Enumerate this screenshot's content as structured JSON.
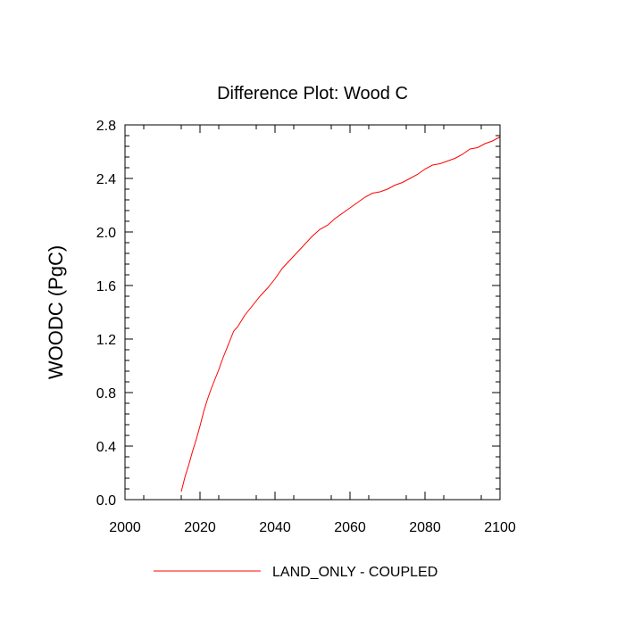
{
  "chart_data": {
    "type": "line",
    "title": "Difference Plot: Wood C",
    "xlabel": "",
    "ylabel": "WOODC  (PgC)",
    "xlim": [
      2000,
      2100
    ],
    "ylim": [
      0.0,
      2.8
    ],
    "x_ticks": [
      "2000",
      "2020",
      "2040",
      "2060",
      "2080",
      "2100"
    ],
    "y_ticks": [
      "0.0",
      "0.4",
      "0.8",
      "1.2",
      "1.6",
      "2.0",
      "2.4",
      "2.8"
    ],
    "grid": false,
    "legend_position": "bottom",
    "series": [
      {
        "name": "LAND_ONLY - COUPLED",
        "color": "#ff0000",
        "x": [
          2015,
          2016,
          2017,
          2018,
          2019,
          2020,
          2021,
          2022,
          2023,
          2024,
          2025,
          2026,
          2027,
          2028,
          2029,
          2030,
          2032,
          2034,
          2036,
          2038,
          2040,
          2042,
          2044,
          2046,
          2048,
          2050,
          2052,
          2054,
          2056,
          2058,
          2060,
          2062,
          2064,
          2066,
          2068,
          2070,
          2072,
          2074,
          2076,
          2078,
          2080,
          2082,
          2084,
          2086,
          2088,
          2090,
          2092,
          2094,
          2096,
          2098,
          2100
        ],
        "values": [
          0.06,
          0.17,
          0.26,
          0.36,
          0.45,
          0.55,
          0.66,
          0.75,
          0.83,
          0.9,
          0.97,
          1.05,
          1.12,
          1.19,
          1.26,
          1.29,
          1.38,
          1.45,
          1.52,
          1.58,
          1.65,
          1.73,
          1.79,
          1.85,
          1.91,
          1.97,
          2.02,
          2.05,
          2.1,
          2.14,
          2.18,
          2.22,
          2.26,
          2.29,
          2.3,
          2.32,
          2.35,
          2.37,
          2.4,
          2.43,
          2.47,
          2.5,
          2.51,
          2.53,
          2.55,
          2.58,
          2.62,
          2.63,
          2.66,
          2.68,
          2.71
        ]
      }
    ]
  },
  "colors": {
    "series_line": "#ff0000",
    "axis": "#000000",
    "background": "#ffffff"
  }
}
